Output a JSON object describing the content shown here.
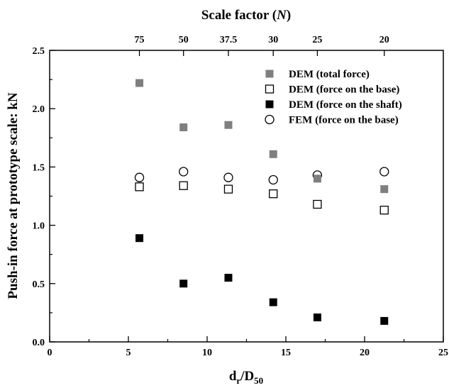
{
  "chart_data": {
    "type": "scatter",
    "xlabel": "d",
    "xlabel_sub_r": "r",
    "xlabel_slash": "/D",
    "xlabel_sub_50": "50",
    "ylabel": "Push-in force at prototype scale: kN",
    "x2label_main": "Scale factor (",
    "x2label_var": "N",
    "x2label_end": ")",
    "xlim": [
      0,
      25
    ],
    "ylim": [
      0,
      2.5
    ],
    "xticks": [
      0,
      5,
      10,
      15,
      20,
      25
    ],
    "xticks_minor": [
      2.5,
      7.5,
      12.5,
      17.5,
      22.5
    ],
    "yticks": [
      0.0,
      0.5,
      1.0,
      1.5,
      2.0,
      2.5
    ],
    "yticks_minor": [
      0.25,
      0.75,
      1.25,
      1.75,
      2.25
    ],
    "xtick_labels": [
      "0",
      "5",
      "10",
      "15",
      "20",
      "25"
    ],
    "ytick_labels": [
      "0.0",
      "0.5",
      "1.0",
      "1.5",
      "2.0",
      "2.5"
    ],
    "top_ticks": [
      {
        "x": 5.7,
        "label": "75"
      },
      {
        "x": 8.5,
        "label": "50"
      },
      {
        "x": 11.35,
        "label": "37.5"
      },
      {
        "x": 14.2,
        "label": "30"
      },
      {
        "x": 17.0,
        "label": "25"
      },
      {
        "x": 21.25,
        "label": "20"
      }
    ],
    "grid": false,
    "legend_position": "top-right",
    "series": [
      {
        "name": "DEM (total force)",
        "marker": "square-filled",
        "color": "#7f7f7f",
        "x": [
          5.7,
          8.5,
          11.35,
          14.2,
          17.0,
          21.25
        ],
        "y": [
          2.22,
          1.84,
          1.86,
          1.61,
          1.4,
          1.31
        ]
      },
      {
        "name": "DEM (force on the base)",
        "marker": "square-open",
        "color": "#000000",
        "x": [
          5.7,
          8.5,
          11.35,
          14.2,
          17.0,
          21.25
        ],
        "y": [
          1.33,
          1.34,
          1.31,
          1.27,
          1.18,
          1.13
        ]
      },
      {
        "name": "DEM (force on the shaft)",
        "marker": "square-filled",
        "color": "#000000",
        "x": [
          5.7,
          8.5,
          11.35,
          14.2,
          17.0,
          21.25
        ],
        "y": [
          0.89,
          0.5,
          0.55,
          0.34,
          0.21,
          0.18
        ]
      },
      {
        "name": "FEM (force on the base)",
        "marker": "circle-open",
        "color": "#000000",
        "x": [
          5.7,
          8.5,
          11.35,
          14.2,
          17.0,
          21.25
        ],
        "y": [
          1.41,
          1.46,
          1.41,
          1.39,
          1.43,
          1.46
        ]
      }
    ]
  }
}
